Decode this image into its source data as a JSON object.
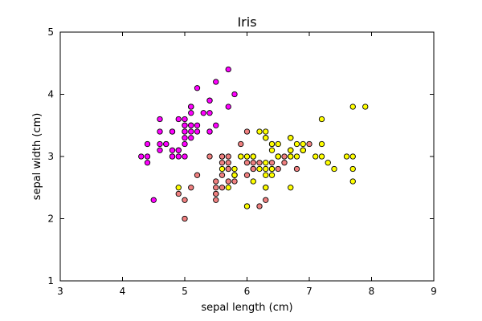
{
  "chart_data": {
    "type": "scatter",
    "title": "Iris",
    "xlabel": "sepal length (cm)",
    "ylabel": "sepal width (cm)",
    "xlim": [
      3,
      9
    ],
    "ylim": [
      1,
      5
    ],
    "xticks": [
      "3",
      "4",
      "5",
      "6",
      "7",
      "8",
      "9"
    ],
    "yticks": [
      "1",
      "2",
      "3",
      "4",
      "5"
    ],
    "grid": false,
    "legend": "none",
    "series": [
      {
        "color": "#ff00ff",
        "points": [
          [
            5.1,
            3.5
          ],
          [
            4.9,
            3.0
          ],
          [
            4.7,
            3.2
          ],
          [
            4.6,
            3.1
          ],
          [
            5.0,
            3.6
          ],
          [
            5.4,
            3.9
          ],
          [
            4.6,
            3.4
          ],
          [
            5.0,
            3.4
          ],
          [
            4.4,
            2.9
          ],
          [
            4.9,
            3.1
          ],
          [
            5.4,
            3.7
          ],
          [
            4.8,
            3.4
          ],
          [
            4.8,
            3.0
          ],
          [
            4.3,
            3.0
          ],
          [
            5.8,
            4.0
          ],
          [
            5.7,
            4.4
          ],
          [
            5.4,
            3.9
          ],
          [
            5.1,
            3.5
          ],
          [
            5.7,
            3.8
          ],
          [
            5.1,
            3.8
          ],
          [
            5.4,
            3.4
          ],
          [
            5.1,
            3.7
          ],
          [
            4.6,
            3.6
          ],
          [
            5.1,
            3.3
          ],
          [
            4.8,
            3.4
          ],
          [
            5.0,
            3.0
          ],
          [
            5.0,
            3.4
          ],
          [
            5.2,
            3.5
          ],
          [
            5.2,
            3.4
          ],
          [
            4.7,
            3.2
          ],
          [
            4.8,
            3.1
          ],
          [
            5.4,
            3.4
          ],
          [
            5.2,
            4.1
          ],
          [
            5.5,
            4.2
          ],
          [
            4.9,
            3.1
          ],
          [
            5.0,
            3.2
          ],
          [
            5.5,
            3.5
          ],
          [
            4.9,
            3.6
          ],
          [
            4.4,
            3.0
          ],
          [
            5.1,
            3.4
          ],
          [
            5.0,
            3.5
          ],
          [
            4.5,
            2.3
          ],
          [
            4.4,
            3.2
          ],
          [
            5.0,
            3.5
          ],
          [
            5.1,
            3.8
          ],
          [
            4.8,
            3.0
          ],
          [
            5.1,
            3.8
          ],
          [
            4.6,
            3.2
          ],
          [
            5.3,
            3.7
          ],
          [
            5.0,
            3.3
          ]
        ]
      },
      {
        "color": "#f08080",
        "points": [
          [
            7.0,
            3.2
          ],
          [
            6.4,
            3.2
          ],
          [
            6.9,
            3.1
          ],
          [
            5.5,
            2.3
          ],
          [
            6.5,
            2.8
          ],
          [
            5.7,
            2.8
          ],
          [
            6.3,
            3.3
          ],
          [
            4.9,
            2.4
          ],
          [
            6.6,
            2.9
          ],
          [
            5.2,
            2.7
          ],
          [
            5.0,
            2.0
          ],
          [
            5.9,
            3.0
          ],
          [
            6.0,
            2.2
          ],
          [
            6.1,
            2.9
          ],
          [
            5.6,
            2.9
          ],
          [
            6.7,
            3.1
          ],
          [
            5.6,
            3.0
          ],
          [
            5.8,
            2.7
          ],
          [
            6.2,
            2.2
          ],
          [
            5.6,
            2.5
          ],
          [
            5.9,
            3.2
          ],
          [
            6.1,
            2.8
          ],
          [
            6.3,
            2.5
          ],
          [
            6.1,
            2.8
          ],
          [
            6.4,
            2.9
          ],
          [
            6.6,
            3.0
          ],
          [
            6.8,
            2.8
          ],
          [
            6.7,
            3.0
          ],
          [
            6.0,
            2.9
          ],
          [
            5.7,
            2.6
          ],
          [
            5.5,
            2.4
          ],
          [
            5.5,
            2.4
          ],
          [
            5.8,
            2.7
          ],
          [
            6.0,
            2.7
          ],
          [
            5.4,
            3.0
          ],
          [
            6.0,
            3.4
          ],
          [
            6.7,
            3.1
          ],
          [
            6.3,
            2.3
          ],
          [
            5.6,
            3.0
          ],
          [
            5.5,
            2.5
          ],
          [
            5.5,
            2.6
          ],
          [
            6.1,
            3.0
          ],
          [
            5.8,
            2.6
          ],
          [
            5.0,
            2.3
          ],
          [
            5.6,
            2.7
          ],
          [
            5.7,
            3.0
          ],
          [
            5.7,
            2.9
          ],
          [
            6.2,
            2.9
          ],
          [
            5.1,
            2.5
          ],
          [
            5.7,
            2.8
          ]
        ]
      },
      {
        "color": "#ffff00",
        "points": [
          [
            6.3,
            3.3
          ],
          [
            5.8,
            2.7
          ],
          [
            7.1,
            3.0
          ],
          [
            6.3,
            2.9
          ],
          [
            6.5,
            3.0
          ],
          [
            7.6,
            3.0
          ],
          [
            4.9,
            2.5
          ],
          [
            7.3,
            2.9
          ],
          [
            6.7,
            2.5
          ],
          [
            7.2,
            3.6
          ],
          [
            6.5,
            3.2
          ],
          [
            6.4,
            2.7
          ],
          [
            6.8,
            3.0
          ],
          [
            5.7,
            2.5
          ],
          [
            5.8,
            2.8
          ],
          [
            6.4,
            3.2
          ],
          [
            6.5,
            3.0
          ],
          [
            7.7,
            3.8
          ],
          [
            7.7,
            2.6
          ],
          [
            6.0,
            2.2
          ],
          [
            6.9,
            3.2
          ],
          [
            5.6,
            2.8
          ],
          [
            7.7,
            2.8
          ],
          [
            6.3,
            2.7
          ],
          [
            6.7,
            3.3
          ],
          [
            7.2,
            3.2
          ],
          [
            6.2,
            2.8
          ],
          [
            6.1,
            3.0
          ],
          [
            6.4,
            2.8
          ],
          [
            7.2,
            3.0
          ],
          [
            7.4,
            2.8
          ],
          [
            7.9,
            3.8
          ],
          [
            6.4,
            2.8
          ],
          [
            6.3,
            2.8
          ],
          [
            6.1,
            2.6
          ],
          [
            7.7,
            3.0
          ],
          [
            6.3,
            3.4
          ],
          [
            6.4,
            3.1
          ],
          [
            6.0,
            3.0
          ],
          [
            6.9,
            3.1
          ],
          [
            6.7,
            3.1
          ],
          [
            6.9,
            3.1
          ],
          [
            5.8,
            2.7
          ],
          [
            6.8,
            3.2
          ],
          [
            6.7,
            3.3
          ],
          [
            6.7,
            3.0
          ],
          [
            6.3,
            2.5
          ],
          [
            6.5,
            3.0
          ],
          [
            6.2,
            3.4
          ],
          [
            5.9,
            3.0
          ]
        ]
      }
    ]
  }
}
